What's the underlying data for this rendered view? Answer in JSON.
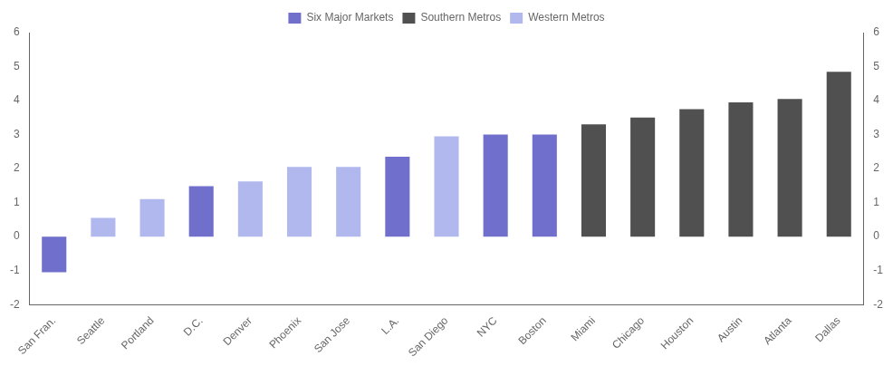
{
  "chart_data": {
    "type": "bar",
    "categories": [
      "San Fran.",
      "Seattle",
      "Portland",
      "D.C.",
      "Denver",
      "Phoenix",
      "San Jose",
      "L.A.",
      "San Diego",
      "NYC",
      "Boston",
      "Miami",
      "Chicago",
      "Houston",
      "Austin",
      "Atlanta",
      "Dallas"
    ],
    "series": [
      {
        "name": "Six Major Markets",
        "color": "#7070cc",
        "values": [
          -1.05,
          null,
          null,
          1.48,
          null,
          null,
          null,
          2.35,
          null,
          3.0,
          3.0,
          null,
          null,
          null,
          null,
          null,
          null
        ]
      },
      {
        "name": "Southern Metros",
        "color": "#505050",
        "values": [
          null,
          null,
          null,
          null,
          null,
          null,
          null,
          null,
          null,
          null,
          null,
          3.3,
          3.5,
          3.75,
          3.95,
          4.05,
          4.85
        ]
      },
      {
        "name": "Western Metros",
        "color": "#b0b8ee",
        "values": [
          null,
          0.55,
          1.1,
          null,
          1.62,
          2.05,
          2.05,
          null,
          2.95,
          null,
          null,
          null,
          null,
          null,
          null,
          null,
          null
        ]
      }
    ],
    "ylim": [
      -2,
      6
    ],
    "yticks": [
      -2,
      -1,
      0,
      1,
      2,
      3,
      4,
      5,
      6
    ],
    "y2lim": [
      -2,
      6
    ],
    "y2ticks": [
      -2,
      -1,
      0,
      1,
      2,
      3,
      4,
      5,
      6
    ],
    "grid": false,
    "legend": "top"
  }
}
